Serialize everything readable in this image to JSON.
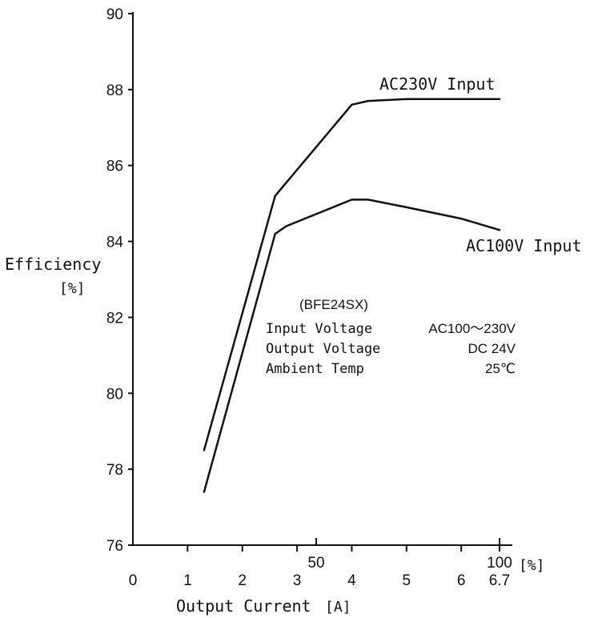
{
  "chart_data": {
    "type": "line",
    "xlabel": "Output Current",
    "xlabel_unit": "[A]",
    "ylabel": "Efficiency",
    "ylabel_unit": "[%]",
    "xlim": [
      0,
      6.7
    ],
    "ylim": [
      76,
      90
    ],
    "x_ticks": [
      0,
      1,
      2,
      3,
      4,
      5,
      6,
      6.7
    ],
    "x_tick_labels": [
      "0",
      "1",
      "2",
      "3",
      "4",
      "5",
      "6",
      "6.7"
    ],
    "y_ticks": [
      76,
      78,
      80,
      82,
      84,
      86,
      88,
      90
    ],
    "y_tick_labels": [
      "76",
      "78",
      "80",
      "82",
      "84",
      "86",
      "88",
      "90"
    ],
    "pct_ticks": [
      {
        "x": 3.35,
        "label": "50"
      },
      {
        "x": 6.7,
        "label": "100"
      }
    ],
    "pct_unit": "[%]",
    "grid": false,
    "series": [
      {
        "name": "AC230V Input",
        "x": [
          1.3,
          2.6,
          4.0,
          4.3,
          5.0,
          6.0,
          6.7
        ],
        "y": [
          78.5,
          85.2,
          87.6,
          87.7,
          87.75,
          87.75,
          87.75
        ]
      },
      {
        "name": "AC100V Input",
        "x": [
          1.3,
          2.6,
          2.8,
          4.0,
          4.3,
          5.0,
          6.0,
          6.7
        ],
        "y": [
          77.4,
          84.2,
          84.4,
          85.1,
          85.1,
          84.9,
          84.6,
          84.3
        ]
      }
    ],
    "info": {
      "model": "(BFE24SX)",
      "rows": [
        {
          "label": "Input Voltage",
          "value": "AC100～230V"
        },
        {
          "label": "Output Voltage",
          "value": "DC 24V"
        },
        {
          "label": "Ambient Temp",
          "value": "25℃"
        }
      ]
    },
    "colors": {
      "line": "#111111",
      "axis": "#111111",
      "background": "#ffffff"
    }
  }
}
